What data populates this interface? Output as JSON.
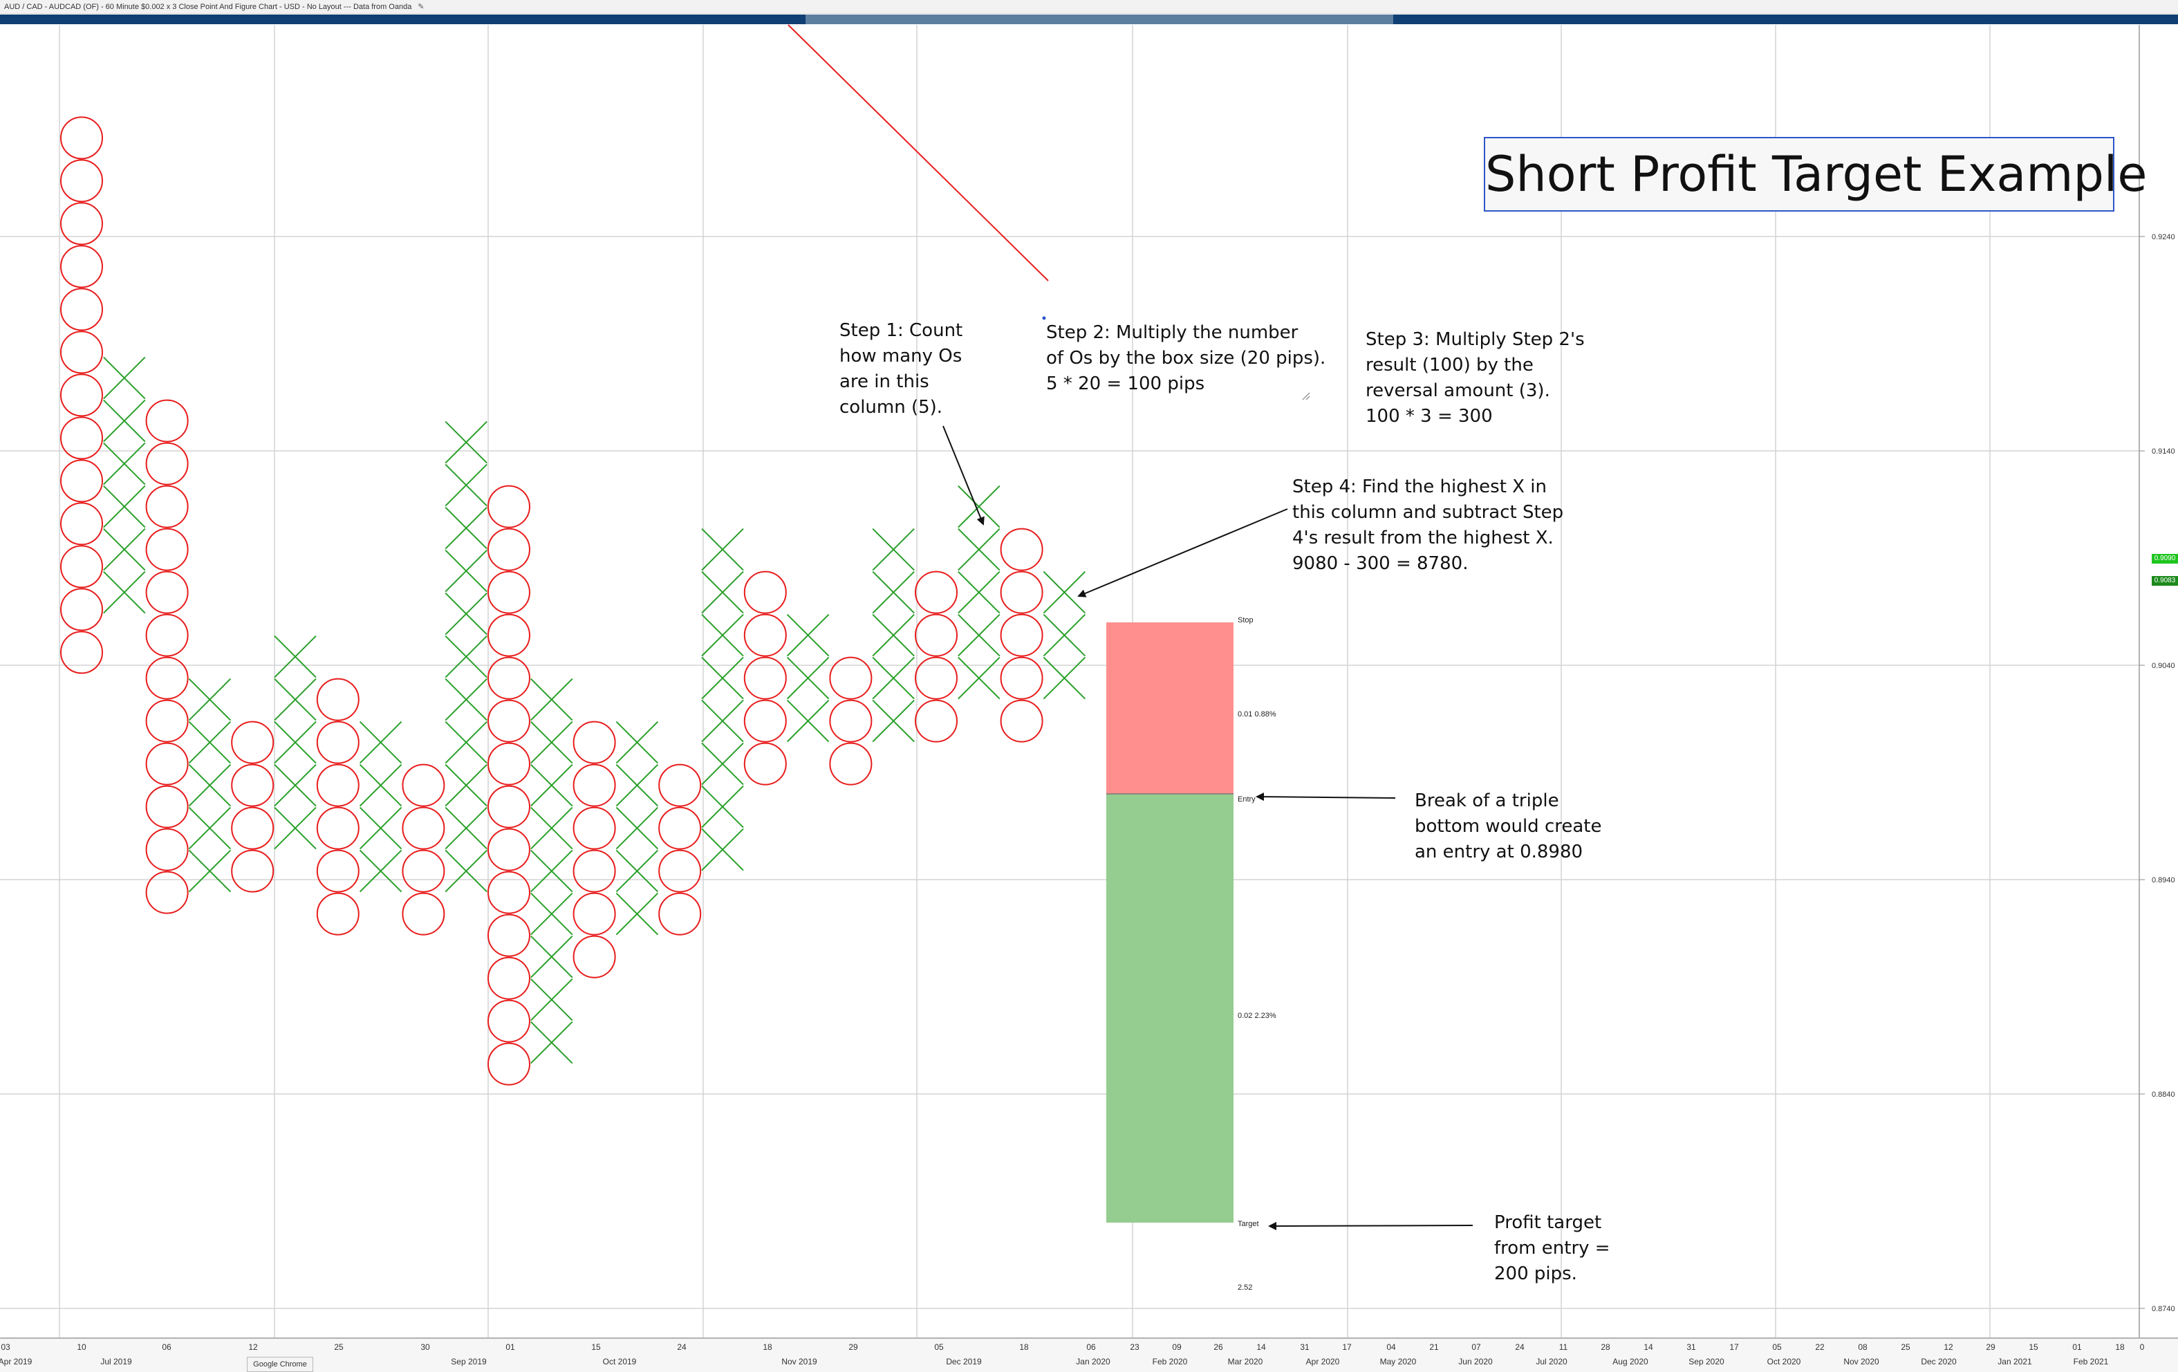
{
  "window": {
    "title": "AUD / CAD - AUDCAD (OF) - 60 Minute $0.002 x 3 Close Point And Figure Chart - USD - No Layout --- Data from Oanda",
    "taskbar_tab": "Google Chrome"
  },
  "colors": {
    "x_color": "#2aa02a",
    "o_color": "#e81d1d",
    "stop_zone": "#ff8f8f",
    "target_zone": "#95cc8f",
    "grid": "#d4d4d4",
    "title_border": "#2e55c7",
    "trendline": "#e81d1d",
    "nav_bar": "#0f3f73",
    "price_tag_green": "#1fc51f",
    "price_tag_dark": "#1c8a1c"
  },
  "chart_data": {
    "type": "point_and_figure",
    "title": "Short Profit Target Example",
    "box_size": 0.002,
    "reversal": 3,
    "y_axis": {
      "range": [
        0.8736,
        0.9294
      ],
      "ticks": [
        "0.9240",
        "0.9140",
        "0.9040",
        "0.8940",
        "0.8840",
        "0.8740"
      ]
    },
    "x_axis": {
      "top_row": [
        "03",
        "10",
        "06",
        "12",
        "25",
        "30",
        "01",
        "15",
        "24",
        "18",
        "29",
        "05",
        "18",
        "06",
        "23",
        "09",
        "26",
        "14",
        "31",
        "17",
        "04",
        "21",
        "07",
        "24",
        "11",
        "28",
        "14",
        "31",
        "17",
        "05",
        "22",
        "08",
        "25",
        "12",
        "29",
        "15",
        "01",
        "18",
        "0"
      ],
      "bottom_row": [
        "Apr 2019",
        "Jul 2019",
        "Sep 2019",
        "Oct 2019",
        "Nov 2019",
        "Dec 2019",
        "Jan 2020",
        "Feb 2020",
        "Mar 2020",
        "Apr 2020",
        "May 2020",
        "Jun 2020",
        "Jul 2020",
        "Aug 2020",
        "Sep 2020",
        "Oct 2020",
        "Nov 2020",
        "Dec 2020",
        "Jan 2021",
        "Feb 2021"
      ]
    },
    "columns": [
      {
        "type": "O",
        "high": 0.9286,
        "low": 0.9054
      },
      {
        "type": "X",
        "low": 0.9084,
        "high": 0.9174
      },
      {
        "type": "O",
        "high": 0.9154,
        "low": 0.8934
      },
      {
        "type": "X",
        "low": 0.8954,
        "high": 0.9024
      },
      {
        "type": "O",
        "high": 0.9004,
        "low": 0.8954
      },
      {
        "type": "X",
        "low": 0.8974,
        "high": 0.9044
      },
      {
        "type": "O",
        "high": 0.9024,
        "low": 0.8934
      },
      {
        "type": "X",
        "low": 0.8954,
        "high": 0.9004
      },
      {
        "type": "O",
        "high": 0.8984,
        "low": 0.8934
      },
      {
        "type": "X",
        "low": 0.8954,
        "high": 0.9144
      },
      {
        "type": "O",
        "high": 0.9114,
        "low": 0.8854
      },
      {
        "type": "X",
        "low": 0.8874,
        "high": 0.9024
      },
      {
        "type": "O",
        "high": 0.9004,
        "low": 0.8914
      },
      {
        "type": "X",
        "low": 0.8934,
        "high": 0.9004
      },
      {
        "type": "O",
        "high": 0.8984,
        "low": 0.8934
      },
      {
        "type": "X",
        "low": 0.8954,
        "high": 0.9094
      },
      {
        "type": "O",
        "high": 0.9074,
        "low": 0.8994
      },
      {
        "type": "X",
        "low": 0.9014,
        "high": 0.9054
      },
      {
        "type": "O",
        "high": 0.9034,
        "low": 0.8994
      },
      {
        "type": "X",
        "low": 0.9014,
        "high": 0.9094
      },
      {
        "type": "O",
        "high": 0.9074,
        "low": 0.9014
      },
      {
        "type": "X",
        "low": 0.9034,
        "high": 0.9114
      },
      {
        "type": "O",
        "high": 0.9094,
        "low": 0.9014
      },
      {
        "type": "X",
        "low": 0.9034,
        "high": 0.9074
      }
    ],
    "trade_levels": {
      "stop": 0.906,
      "entry": 0.898,
      "target": 0.878
    },
    "trade_labels": {
      "stop": "Stop",
      "entry": "Entry",
      "target": "Target",
      "risk": "0.01   0.88%",
      "reward": "0.02   2.23%",
      "ratio": "2.52"
    },
    "price_tags": [
      "0.9090",
      "0.9083"
    ],
    "annotations": {
      "step1": [
        "Step 1: Count",
        "how many Os",
        "are in this",
        "column (5)."
      ],
      "step2": [
        "Step 2: Multiply the number",
        "of Os by the box size (20 pips).",
        "5 * 20 = 100 pips"
      ],
      "step3": [
        "Step 3: Multiply Step 2's",
        "result (100) by the",
        "reversal amount (3).",
        "100 * 3 = 300"
      ],
      "step4": [
        "Step 4: Find the highest X in",
        "this column and subtract Step",
        "4's result from the highest X.",
        "9080 - 300 = 8780."
      ],
      "entry_note": [
        "Break of a triple",
        "bottom would create",
        "an entry at 0.8980"
      ],
      "target_note": [
        "Profit target",
        "from entry =",
        "200 pips."
      ]
    }
  }
}
